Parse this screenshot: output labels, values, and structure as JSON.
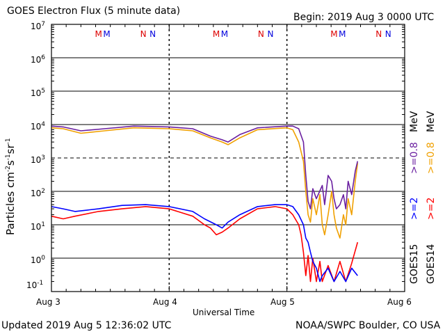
{
  "title": "GOES Electron Flux (5 minute data)",
  "begin": "Begin: 2019 Aug 3 0000 UTC",
  "updated": "Updated 2019 Aug  5 12:36:02 UTC",
  "credit": "NOAA/SWPC Boulder, CO USA",
  "xlabel": "Universal Time",
  "ylabel_text": "Particles cm-2s-1sr-1",
  "ylabel": {
    "base": "Particles cm",
    "e1": "-2",
    "s": "s",
    "e2": "-1",
    "sr": "sr",
    "e3": "-1"
  },
  "xticks": [
    "Aug 3",
    "Aug 4",
    "Aug 5",
    "Aug 6"
  ],
  "yticks": [
    {
      "base": "10",
      "exp": "7"
    },
    {
      "base": "10",
      "exp": "6"
    },
    {
      "base": "10",
      "exp": "5"
    },
    {
      "base": "10",
      "exp": "4"
    },
    {
      "base": "10",
      "exp": "3"
    },
    {
      "base": "10",
      "exp": "2"
    },
    {
      "base": "10",
      "exp": "1"
    },
    {
      "base": "10",
      "exp": "0"
    },
    {
      "base": "10",
      "exp": "-1"
    }
  ],
  "right_labels": {
    "goes15": "GOES15",
    "goes14": "GOES14",
    "g15_ge2": ">=2",
    "g14_ge2": ">=2",
    "g15_ge08": ">=0.8",
    "g14_ge08": ">=0.8",
    "mev1": "MeV",
    "mev2": "MeV"
  },
  "markers": [
    {
      "label": "M",
      "x": 0.4,
      "color": "#dd0000"
    },
    {
      "label": "M",
      "x": 0.47,
      "color": "#0000dd"
    },
    {
      "label": "N",
      "x": 0.78,
      "color": "#dd0000"
    },
    {
      "label": "N",
      "x": 0.86,
      "color": "#0000dd"
    },
    {
      "label": "M",
      "x": 1.4,
      "color": "#dd0000"
    },
    {
      "label": "M",
      "x": 1.47,
      "color": "#0000dd"
    },
    {
      "label": "N",
      "x": 1.78,
      "color": "#dd0000"
    },
    {
      "label": "N",
      "x": 1.86,
      "color": "#0000dd"
    },
    {
      "label": "M",
      "x": 2.4,
      "color": "#dd0000"
    },
    {
      "label": "M",
      "x": 2.47,
      "color": "#0000dd"
    },
    {
      "label": "N",
      "x": 2.78,
      "color": "#dd0000"
    },
    {
      "label": "N",
      "x": 2.86,
      "color": "#0000dd"
    }
  ],
  "colors": {
    "goes15_ge08": "#6a1fa0",
    "goes14_ge08": "#f0a000",
    "goes15_ge2": "#0000ff",
    "goes14_ge2": "#ff0000"
  },
  "chart_data": {
    "type": "line",
    "title": "GOES Electron Flux (5 minute data)",
    "xlabel": "Universal Time",
    "ylabel": "Particles cm-2s-1sr-1",
    "x_unit": "days since 2019 Aug 3 0000 UTC",
    "xlim": [
      0,
      3
    ],
    "ylim": [
      0.1,
      10000000
    ],
    "yscale": "log",
    "threshold_line": 1000,
    "series": [
      {
        "name": "GOES15 >=0.8 MeV",
        "color": "#6a1fa0",
        "points": [
          [
            0,
            9000
          ],
          [
            0.1,
            8500
          ],
          [
            0.25,
            6500
          ],
          [
            0.45,
            7500
          ],
          [
            0.7,
            9000
          ],
          [
            1.0,
            8500
          ],
          [
            1.2,
            7500
          ],
          [
            1.35,
            4500
          ],
          [
            1.45,
            3500
          ],
          [
            1.5,
            3000
          ],
          [
            1.6,
            5000
          ],
          [
            1.75,
            8000
          ],
          [
            2.0,
            9000
          ],
          [
            2.05,
            9000
          ],
          [
            2.1,
            7500
          ],
          [
            2.14,
            3000
          ],
          [
            2.16,
            300
          ],
          [
            2.18,
            50
          ],
          [
            2.2,
            30
          ],
          [
            2.22,
            120
          ],
          [
            2.25,
            60
          ],
          [
            2.3,
            150
          ],
          [
            2.32,
            40
          ],
          [
            2.35,
            300
          ],
          [
            2.38,
            200
          ],
          [
            2.4,
            60
          ],
          [
            2.42,
            30
          ],
          [
            2.45,
            40
          ],
          [
            2.48,
            80
          ],
          [
            2.5,
            30
          ],
          [
            2.52,
            200
          ],
          [
            2.55,
            80
          ],
          [
            2.58,
            400
          ],
          [
            2.6,
            800
          ]
        ]
      },
      {
        "name": "GOES14 >=0.8 MeV",
        "color": "#f0a000",
        "points": [
          [
            0,
            8000
          ],
          [
            0.1,
            7500
          ],
          [
            0.25,
            5500
          ],
          [
            0.45,
            6500
          ],
          [
            0.7,
            8000
          ],
          [
            1.0,
            7500
          ],
          [
            1.2,
            6500
          ],
          [
            1.35,
            4000
          ],
          [
            1.45,
            3000
          ],
          [
            1.5,
            2500
          ],
          [
            1.6,
            4000
          ],
          [
            1.75,
            7000
          ],
          [
            2.0,
            8000
          ],
          [
            2.05,
            7000
          ],
          [
            2.1,
            3000
          ],
          [
            2.14,
            800
          ],
          [
            2.16,
            100
          ],
          [
            2.18,
            20
          ],
          [
            2.2,
            12
          ],
          [
            2.22,
            60
          ],
          [
            2.25,
            20
          ],
          [
            2.28,
            80
          ],
          [
            2.3,
            10
          ],
          [
            2.32,
            5
          ],
          [
            2.35,
            20
          ],
          [
            2.38,
            100
          ],
          [
            2.4,
            20
          ],
          [
            2.42,
            8
          ],
          [
            2.45,
            4
          ],
          [
            2.48,
            20
          ],
          [
            2.5,
            10
          ],
          [
            2.52,
            60
          ],
          [
            2.55,
            20
          ],
          [
            2.58,
            200
          ],
          [
            2.6,
            700
          ]
        ]
      },
      {
        "name": "GOES15 >=2 MeV",
        "color": "#0000ff",
        "points": [
          [
            0,
            35
          ],
          [
            0.1,
            30
          ],
          [
            0.2,
            25
          ],
          [
            0.4,
            30
          ],
          [
            0.6,
            38
          ],
          [
            0.8,
            40
          ],
          [
            1.0,
            35
          ],
          [
            1.2,
            25
          ],
          [
            1.3,
            15
          ],
          [
            1.4,
            10
          ],
          [
            1.45,
            8
          ],
          [
            1.5,
            12
          ],
          [
            1.6,
            20
          ],
          [
            1.75,
            35
          ],
          [
            1.9,
            40
          ],
          [
            2.0,
            40
          ],
          [
            2.05,
            35
          ],
          [
            2.1,
            20
          ],
          [
            2.14,
            10
          ],
          [
            2.16,
            4
          ],
          [
            2.18,
            3
          ],
          [
            2.2,
            1.5
          ],
          [
            2.22,
            0.8
          ],
          [
            2.25,
            0.5
          ],
          [
            2.28,
            0.2
          ],
          [
            2.3,
            0.3
          ],
          [
            2.35,
            0.5
          ],
          [
            2.4,
            0.2
          ],
          [
            2.45,
            0.4
          ],
          [
            2.5,
            0.2
          ],
          [
            2.55,
            0.5
          ],
          [
            2.6,
            0.3
          ]
        ]
      },
      {
        "name": "GOES14 >=2 MeV",
        "color": "#ff0000",
        "points": [
          [
            0,
            18
          ],
          [
            0.1,
            15
          ],
          [
            0.2,
            18
          ],
          [
            0.4,
            25
          ],
          [
            0.6,
            30
          ],
          [
            0.8,
            35
          ],
          [
            1.0,
            30
          ],
          [
            1.2,
            18
          ],
          [
            1.3,
            10
          ],
          [
            1.35,
            8
          ],
          [
            1.4,
            5
          ],
          [
            1.45,
            6
          ],
          [
            1.5,
            8
          ],
          [
            1.6,
            15
          ],
          [
            1.75,
            30
          ],
          [
            1.9,
            35
          ],
          [
            2.0,
            30
          ],
          [
            2.05,
            20
          ],
          [
            2.1,
            10
          ],
          [
            2.12,
            5
          ],
          [
            2.14,
            1.5
          ],
          [
            2.16,
            0.3
          ],
          [
            2.18,
            1.2
          ],
          [
            2.2,
            0.2
          ],
          [
            2.22,
            1.0
          ],
          [
            2.25,
            0.2
          ],
          [
            2.28,
            0.8
          ],
          [
            2.3,
            0.2
          ],
          [
            2.35,
            0.6
          ],
          [
            2.4,
            0.2
          ],
          [
            2.45,
            0.8
          ],
          [
            2.5,
            0.2
          ],
          [
            2.55,
            0.7
          ],
          [
            2.6,
            3
          ]
        ]
      }
    ]
  }
}
